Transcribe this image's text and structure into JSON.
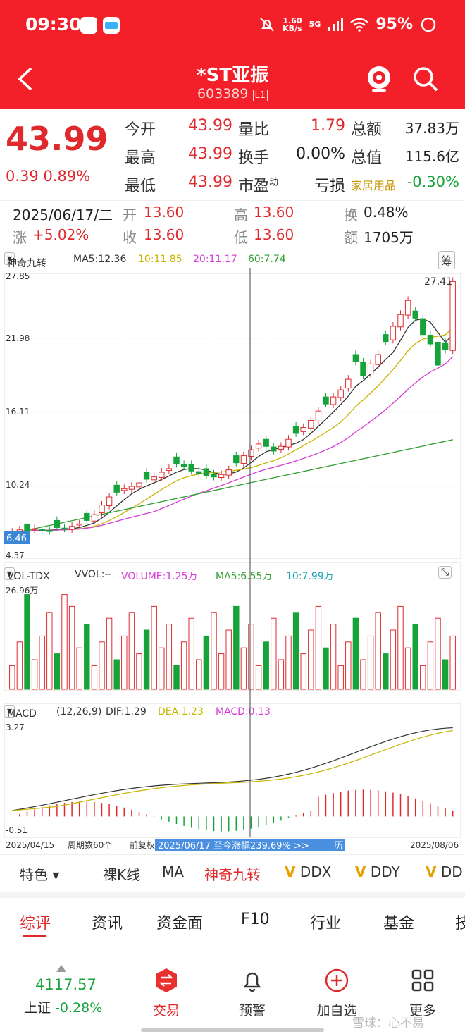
{
  "status": {
    "time": "09:30",
    "speed_top": "1.60",
    "speed_bottom": "KB/s",
    "battery": "95%",
    "net": "5G"
  },
  "header": {
    "title": "*ST亚振",
    "code": "603389",
    "code_badge": "L1"
  },
  "quote": {
    "price": "43.99",
    "change": "0.39",
    "change_pct": "0.89%",
    "open_label": "今开",
    "open": "43.99",
    "high_label": "最高",
    "high": "43.99",
    "low_label": "最低",
    "low": "43.99",
    "vol_ratio_label": "量比",
    "vol_ratio": "1.79",
    "turnover_label": "换手",
    "turnover": "0.00%",
    "pe_label": "市盈",
    "pe_sup": "动",
    "pe": "亏损",
    "amount_label": "总额",
    "amount": "37.83万",
    "mktcap_label": "总值",
    "mktcap": "115.6亿",
    "sector": "家居用品",
    "sector_change": "-0.30%"
  },
  "day_info": {
    "date": "2025/06/17/二",
    "open_label": "开",
    "open": "13.60",
    "high_label": "高",
    "high": "13.60",
    "turnover_label": "换",
    "turnover": "0.48%",
    "rise_label": "涨",
    "rise": "+5.02%",
    "close_label": "收",
    "close": "13.60",
    "low_label": "低",
    "low": "13.60",
    "amount_label": "额",
    "amount": "1705万"
  },
  "kline_legend": {
    "indicator": "神奇九转",
    "ma5": "MA5:12.36",
    "ma10": "10:11.85",
    "ma20": "20:11.17",
    "ma60": "60:7.74",
    "chip": "筹"
  },
  "vol_legend": {
    "indicator": "VOL-TDX",
    "vvol": "VVOL:--",
    "volume": "VOLUME:1.25万",
    "ma5": "MA5:6.55万",
    "ma10": "10:7.99万"
  },
  "macd_legend": {
    "indicator": "MACD",
    "params": "(12,26,9)",
    "dif": "DIF:1.29",
    "dea": "DEA:1.23",
    "macd": "MACD:0.13"
  },
  "chart_axis": {
    "price_ticks": [
      "27.85",
      "21.98",
      "16.11",
      "10.24",
      "4.37"
    ],
    "current_price_tag": "6.46",
    "high_label": "27.41",
    "vol_top": "26.96万",
    "macd_top": "3.27",
    "macd_bottom": "-0.51",
    "start_date": "2025/04/15",
    "period": "周期数60个",
    "adjust": "前复权",
    "banner": "2025/06/17 至今涨幅239.69%  >>",
    "banner_suffix": "历",
    "end_date": "2025/08/06"
  },
  "chart_data": {
    "type": "candlestick",
    "ylim": [
      4.37,
      27.85
    ],
    "closes": [
      6.1,
      6.3,
      6.2,
      6.4,
      6.3,
      6.2,
      6.5,
      6.4,
      6.6,
      6.8,
      7.1,
      7.6,
      8.4,
      9.1,
      9.5,
      9.8,
      10.0,
      10.3,
      10.6,
      10.8,
      11.2,
      11.5,
      11.9,
      11.7,
      11.3,
      11.1,
      10.9,
      10.8,
      11.0,
      11.4,
      12.0,
      12.6,
      13.1,
      13.6,
      13.4,
      13.0,
      13.4,
      14.0,
      14.5,
      15.0,
      15.6,
      16.4,
      17.0,
      17.6,
      18.2,
      19.1,
      20.6,
      19.4,
      20.4,
      21.2,
      22.3,
      23.6,
      24.6,
      25.8,
      24.3,
      22.9,
      22.1,
      20.3,
      21.6,
      27.41
    ],
    "ma_series": [
      "MA5",
      "MA10",
      "MA20",
      "MA60"
    ],
    "macd_range": [
      -0.51,
      3.27
    ]
  },
  "toolbar": {
    "feature": "特色",
    "items": [
      "裸K线",
      "MA",
      "神奇九转",
      "DDX",
      "DDY",
      "DD"
    ]
  },
  "tabs": [
    "综评",
    "资讯",
    "资金面",
    "F10",
    "行业",
    "基金",
    "技"
  ],
  "bottom_nav": {
    "index_value": "4117.57",
    "index_name": "上证",
    "index_change": "-0.28%",
    "trade": "交易",
    "alert": "预警",
    "watch": "加自选",
    "more": "更多",
    "watermark": "雪球：心不易"
  },
  "colors": {
    "brand_red": "#f3202a",
    "up_red": "#e0292c",
    "down_green": "#15a33a",
    "ma5": "#333333",
    "ma10": "#c8b400",
    "ma20": "#d63bd6",
    "ma60": "#2f9e2f"
  }
}
